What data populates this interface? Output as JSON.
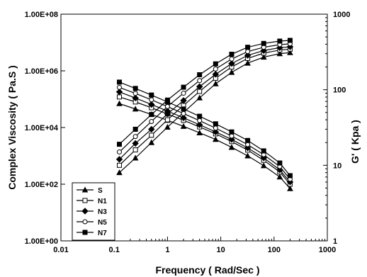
{
  "chart_data": {
    "type": "line",
    "xlabel": "Frequency ( Rad/Sec )",
    "ylabel_left": "Complex Viscosity ( Pa.S )",
    "ylabel_right": "G' ( Kpa )",
    "x_scale": "log",
    "y_left_scale": "log",
    "y_right_scale": "log",
    "xlim": [
      0.01,
      1000
    ],
    "ylim_left": [
      1,
      100000000
    ],
    "ylim_right": [
      1,
      1000
    ],
    "x_tick_labels": [
      "0.01",
      "0.1",
      "1",
      "10",
      "100",
      "1000"
    ],
    "y_left_tick_labels": [
      "1.00E+00",
      "1.00E+02",
      "1.00E+04",
      "1.00E+06",
      "1.00E+08"
    ],
    "y_right_tick_labels": [
      "1",
      "10",
      "100",
      "1000"
    ],
    "grid": false,
    "legend_position": "bottom-left",
    "x": [
      0.125,
      0.25,
      0.5,
      1,
      2,
      4,
      8,
      16,
      32,
      64,
      128,
      200
    ],
    "series": [
      {
        "name": "S",
        "marker": "triangle",
        "viscosity": [
          70000,
          45000,
          29000,
          18000,
          11000,
          6500,
          3800,
          2000,
          1000,
          450,
          180,
          70
        ],
        "g_prime": [
          8,
          12.5,
          20,
          32,
          50,
          78,
          120,
          170,
          225,
          270,
          300,
          310
        ]
      },
      {
        "name": "N1",
        "marker": "square-open",
        "viscosity": [
          120000,
          80000,
          50000,
          30000,
          18000,
          10500,
          6000,
          3200,
          1600,
          700,
          270,
          100
        ],
        "g_prime": [
          10,
          16,
          25,
          40,
          62,
          95,
          142,
          200,
          260,
          305,
          335,
          345
        ]
      },
      {
        "name": "N3",
        "marker": "diamond",
        "viscosity": [
          180000,
          110000,
          65000,
          38000,
          22000,
          12500,
          7000,
          3800,
          1900,
          850,
          320,
          120
        ],
        "g_prime": [
          12,
          19.5,
          30,
          48,
          72,
          110,
          160,
          222,
          285,
          330,
          360,
          370
        ]
      },
      {
        "name": "N5",
        "marker": "circle-open",
        "viscosity": [
          260000,
          160000,
          95000,
          55000,
          31000,
          17500,
          9500,
          5000,
          2500,
          1100,
          420,
          150
        ],
        "g_prime": [
          15,
          24,
          38,
          60,
          90,
          132,
          188,
          255,
          320,
          365,
          395,
          405
        ]
      },
      {
        "name": "N7",
        "marker": "square",
        "viscosity": [
          400000,
          240000,
          140000,
          80000,
          45000,
          25000,
          13500,
          7000,
          3500,
          1500,
          560,
          200
        ],
        "g_prime": [
          19,
          30,
          47,
          73,
          108,
          158,
          220,
          295,
          365,
          410,
          440,
          450
        ]
      }
    ]
  }
}
